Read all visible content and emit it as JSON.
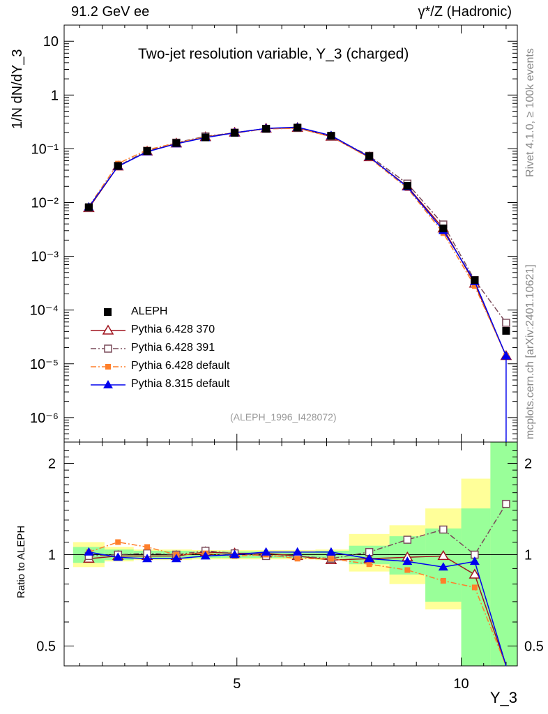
{
  "header": {
    "left": "91.2 GeV ee",
    "right": "γ*/Z (Hadronic)"
  },
  "plot_title": "Two-jet resolution variable, Y_3 (charged)",
  "watermark": "(ALEPH_1996_I428072)",
  "side_labels": {
    "rivet": "Rivet 4.1.0, ≥ 100k events",
    "mcplots": "mcplots.cern.ch [arXiv:2401.10621]"
  },
  "colors": {
    "ALEPH": "#000000",
    "Pythia 6.428 370": "#a0141e",
    "Pythia 6.428 391": "#7a4b5a",
    "Pythia 6.428 default": "#ff7f2a",
    "Pythia 8.315 default": "#0000ee",
    "band_green": "#99ff99",
    "band_yellow": "#ffff99"
  },
  "chart_data": [
    {
      "type": "line",
      "name": "main",
      "ylabel": "1/N  dN/dY_3",
      "yscale": "log",
      "ylim": [
        3.5e-07,
        20
      ],
      "xlim": [
        1.15,
        11.25
      ],
      "ytick_labels": [
        {
          "v": 10,
          "t": "10"
        },
        {
          "v": 1,
          "t": "1"
        },
        {
          "v": 0.1,
          "t": "10⁻¹"
        },
        {
          "v": 0.01,
          "t": "10⁻²"
        },
        {
          "v": 0.001,
          "t": "10⁻³"
        },
        {
          "v": 0.0001,
          "t": "10⁻⁴"
        },
        {
          "v": 1e-05,
          "t": "10⁻⁵"
        },
        {
          "v": 1e-06,
          "t": "10⁻⁶"
        }
      ],
      "x": [
        1.7,
        2.35,
        3.0,
        3.65,
        4.3,
        4.95,
        5.65,
        6.35,
        7.1,
        7.95,
        8.8,
        9.6,
        10.3,
        11.0
      ],
      "series": [
        {
          "name": "ALEPH",
          "marker": "square-filled",
          "style": "none",
          "values": [
            0.0082,
            0.048,
            0.091,
            0.128,
            0.163,
            0.198,
            0.236,
            0.248,
            0.175,
            0.073,
            0.0205,
            0.0033,
            0.00036,
            4.1e-05
          ]
        },
        {
          "name": "Pythia 6.428 370",
          "marker": "triangle-open",
          "style": "solid",
          "values": [
            0.0079,
            0.047,
            0.089,
            0.126,
            0.165,
            0.2,
            0.238,
            0.245,
            0.168,
            0.07,
            0.02,
            0.0033,
            0.00031,
            1.4e-05
          ]
        },
        {
          "name": "Pythia 6.428 391",
          "marker": "square-open",
          "style": "dashdot",
          "values": [
            0.008,
            0.048,
            0.092,
            0.13,
            0.17,
            0.2,
            0.235,
            0.245,
            0.17,
            0.074,
            0.0225,
            0.0039,
            0.00036,
            5.8e-05
          ]
        },
        {
          "name": "Pythia 6.428 default",
          "marker": "square-filled-small",
          "style": "dashdot",
          "values": [
            0.0085,
            0.053,
            0.096,
            0.128,
            0.165,
            0.195,
            0.235,
            0.24,
            0.17,
            0.068,
            0.0185,
            0.0027,
            0.00028,
            1.4e-05
          ]
        },
        {
          "name": "Pythia 8.315 default",
          "marker": "triangle-filled",
          "style": "solid",
          "values": [
            0.0083,
            0.047,
            0.088,
            0.124,
            0.161,
            0.198,
            0.24,
            0.252,
            0.177,
            0.071,
            0.0195,
            0.003,
            0.00034,
            1.4e-05
          ]
        }
      ]
    },
    {
      "type": "line",
      "name": "ratio",
      "ylabel": "Ratio to ALEPH",
      "xlabel": "Y_3",
      "yscale": "log",
      "ylim": [
        0.43,
        2.35
      ],
      "xlim": [
        1.15,
        11.25
      ],
      "ytick_labels": [
        {
          "v": 2,
          "t": "2"
        },
        {
          "v": 1,
          "t": "1"
        },
        {
          "v": 0.5,
          "t": "0.5"
        }
      ],
      "xtick_labels": [
        {
          "v": 5,
          "t": "5"
        },
        {
          "v": 10,
          "t": "10"
        }
      ],
      "x": [
        1.7,
        2.35,
        3.0,
        3.65,
        4.3,
        4.95,
        5.65,
        6.35,
        7.1,
        7.95,
        8.8,
        9.6,
        10.3,
        11.0
      ],
      "band_edges": [
        1.35,
        2.05,
        2.7,
        3.35,
        4.0,
        4.65,
        5.3,
        6.0,
        6.75,
        7.5,
        8.4,
        9.2,
        10.0,
        10.65,
        11.25
      ],
      "bands": {
        "green": [
          [
            0.94,
            1.06
          ],
          [
            0.96,
            1.04
          ],
          [
            0.97,
            1.03
          ],
          [
            0.97,
            1.03
          ],
          [
            0.975,
            1.025
          ],
          [
            0.975,
            1.025
          ],
          [
            0.975,
            1.025
          ],
          [
            0.975,
            1.025
          ],
          [
            0.97,
            1.03
          ],
          [
            0.93,
            1.07
          ],
          [
            0.86,
            1.15
          ],
          [
            0.7,
            1.22
          ],
          [
            0.43,
            1.42
          ],
          [
            0.43,
            2.35
          ]
        ],
        "yellow": [
          [
            0.91,
            1.1
          ],
          [
            0.95,
            1.06
          ],
          [
            0.96,
            1.04
          ],
          [
            0.96,
            1.04
          ],
          [
            0.965,
            1.035
          ],
          [
            0.965,
            1.035
          ],
          [
            0.965,
            1.035
          ],
          [
            0.965,
            1.035
          ],
          [
            0.96,
            1.04
          ],
          [
            0.88,
            1.17
          ],
          [
            0.8,
            1.25
          ],
          [
            0.66,
            1.42
          ],
          [
            0.43,
            1.78
          ],
          [
            0.43,
            2.35
          ]
        ]
      },
      "series": [
        {
          "name": "Pythia 6.428 370",
          "values": [
            0.97,
            0.99,
            0.99,
            0.99,
            1.02,
            1.01,
            1.01,
            0.99,
            0.96,
            0.97,
            0.98,
            0.99,
            0.86,
            0.34
          ]
        },
        {
          "name": "Pythia 6.428 391",
          "values": [
            0.99,
            1.0,
            1.01,
            1.0,
            1.03,
            1.01,
            0.99,
            0.99,
            0.97,
            1.02,
            1.12,
            1.21,
            1.0,
            1.47
          ]
        },
        {
          "name": "Pythia 6.428 default",
          "values": [
            1.02,
            1.1,
            1.06,
            1.0,
            1.01,
            0.99,
            1.0,
            0.97,
            0.97,
            0.93,
            0.89,
            0.82,
            0.78,
            0.34
          ]
        },
        {
          "name": "Pythia 8.315 default",
          "values": [
            1.02,
            0.98,
            0.97,
            0.97,
            0.99,
            1.0,
            1.02,
            1.02,
            1.02,
            0.97,
            0.95,
            0.91,
            0.95,
            0.34
          ]
        }
      ]
    }
  ]
}
